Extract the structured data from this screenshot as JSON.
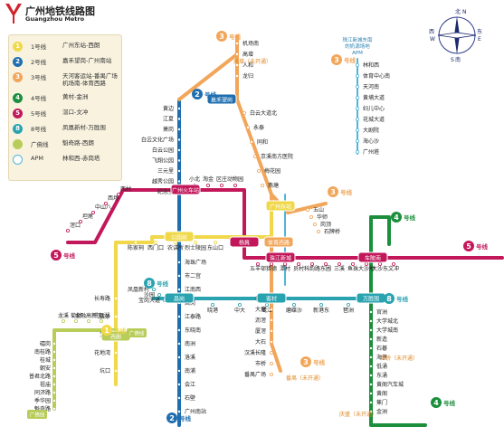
{
  "header": {
    "title_cn": "广州地铁线路图",
    "title_en": "Guangzhou Metro"
  },
  "legend": [
    {
      "num": "1",
      "name": "1号线",
      "route": "广州东站-西朗",
      "color": "#f0d84a"
    },
    {
      "num": "2",
      "name": "2号线",
      "route": "嘉禾望岗-广州南站",
      "color": "#1f6fb0"
    },
    {
      "num": "3",
      "name": "3号线",
      "route": "天河客运站-番禺广场\n机场南-体育西路",
      "color": "#f1a65a"
    },
    {
      "num": "4",
      "name": "4号线",
      "route": "黄村-金洲",
      "color": "#1b8f3c"
    },
    {
      "num": "5",
      "name": "5号线",
      "route": "滘口-文冲",
      "color": "#c2185b"
    },
    {
      "num": "8",
      "name": "8号线",
      "route": "凤凰新村-万胜围",
      "color": "#2aa3b0"
    },
    {
      "num": "",
      "name": "广佛线",
      "route": "魁奇路-西朗",
      "color": "#b8cc5a"
    },
    {
      "num": "",
      "name": "APM",
      "route": "林和西-赤岗塔",
      "color": "#4fb6d9"
    }
  ],
  "compass": {
    "n": "北",
    "n_en": "N",
    "s": "南",
    "s_en": "S",
    "e": "东",
    "e_en": "E",
    "w": "西",
    "w_en": "W"
  },
  "line_tags": [
    {
      "num": "3",
      "label": "号线",
      "color": "#f1a65a"
    },
    {
      "num": "2",
      "label": "号线",
      "color": "#1f6fb0"
    },
    {
      "num": "3",
      "label": "号线",
      "color": "#f1a65a"
    },
    {
      "num": "3",
      "label": "号线",
      "color": "#f1a65a"
    },
    {
      "num": "4",
      "label": "号线",
      "color": "#1b8f3c"
    },
    {
      "num": "5",
      "label": "号线",
      "color": "#c2185b"
    },
    {
      "num": "5",
      "label": "号线",
      "color": "#c2185b"
    },
    {
      "num": "8",
      "label": "号线",
      "color": "#2aa3b0"
    },
    {
      "num": "8",
      "label": "号线",
      "color": "#2aa3b0"
    },
    {
      "num": "3",
      "label": "号线",
      "color": "#f1a65a"
    },
    {
      "num": "2",
      "label": "号线",
      "color": "#1f6fb0"
    },
    {
      "num": "4",
      "label": "号线",
      "color": "#1b8f3c"
    },
    {
      "num": "1",
      "label": "号线",
      "color": "#f0d84a"
    }
  ],
  "construction": [
    "高增（未开通）",
    "番禺（未开通）",
    "官桥（未开通）",
    "庆盛（未开通）"
  ],
  "apm_note": "珠江新城东南\n的奶源场地\nAPM",
  "guangfo_tags": [
    "广佛线",
    "广佛线"
  ],
  "interchanges": {
    "jiahe": "嘉禾望岗",
    "guangzhou_rail": "广州火车站",
    "guangzhou_east": "广州东站",
    "gongyuanqian": "公园前",
    "yangji": "杨箕",
    "tiyu_xilu": "体育西路",
    "zhujiang_xincheng": "珠江新城",
    "che_pi": "车陂南",
    "changban": "昌岗",
    "kecun": "客村",
    "wanshengwei": "万胜围",
    "xilang": "西朗"
  },
  "stations": {
    "l3n": [
      "机场南",
      "高增",
      "人和",
      "龙归",
      "嘉禾望岗",
      "白云大道北",
      "永泰",
      "同和",
      "京溪南方医院",
      "梅花园",
      "燕塘"
    ],
    "l2": [
      "黄边",
      "江夏",
      "萧岗",
      "白云文化广场",
      "白云公园",
      "飞翔公园",
      "三元里",
      "越秀公园",
      "纪念堂",
      "公园前",
      "海珠广场",
      "市二宫",
      "江南西",
      "昌岗",
      "江泰路",
      "东晓南",
      "南洲",
      "洛溪",
      "南浦",
      "会江",
      "石壁",
      "广州南站"
    ],
    "l5": [
      "滘口",
      "坦尾",
      "中山八",
      "西场",
      "西村",
      "小北",
      "淘金",
      "区庄",
      "动物园",
      "杨箕",
      "五羊邨",
      "猎德",
      "潭村",
      "员村",
      "科韵路",
      "东圃",
      "三溪",
      "鱼珠",
      "大沙地",
      "大沙东",
      "文冲"
    ],
    "l1": [
      "西朗",
      "坑口",
      "花地湾",
      "芳村",
      "黄沙",
      "长寿路",
      "陈家祠",
      "西门口",
      "农讲所",
      "烈士陵园",
      "东山口",
      "体育中心",
      "林和西"
    ],
    "l8": [
      "凤凰新村",
      "沙园",
      "宝岗大道",
      "晓港",
      "中大",
      "鹭江",
      "磨碟沙",
      "新港东",
      "琶洲"
    ],
    "l3s": [
      "天河客运站",
      "五山",
      "华师",
      "岗顶",
      "石牌桥",
      "赤岗",
      "大塘",
      "沥滘",
      "厦滘",
      "大石",
      "汉溪长隆",
      "市桥",
      "番禺广场"
    ],
    "l4": [
      "黄村",
      "车陂",
      "官洲",
      "大学城北",
      "大学城南",
      "新造",
      "石碁",
      "海傍",
      "低涌",
      "东涌",
      "黄阁汽车城",
      "黄阁",
      "蕉门",
      "金洲"
    ],
    "apm": [
      "林和西",
      "体育中心南",
      "天河南",
      "黄埔大道",
      "妇儿中心",
      "花城大道",
      "大剧院",
      "海心沙",
      "广州塔"
    ],
    "gf": [
      "龙溪",
      "菊树",
      "金融高新区",
      "千灯湖",
      "礌岗",
      "南桂路",
      "桂城",
      "朝安",
      "普君北路",
      "祖庙",
      "同济路",
      "季华园",
      "魁奇路"
    ]
  }
}
